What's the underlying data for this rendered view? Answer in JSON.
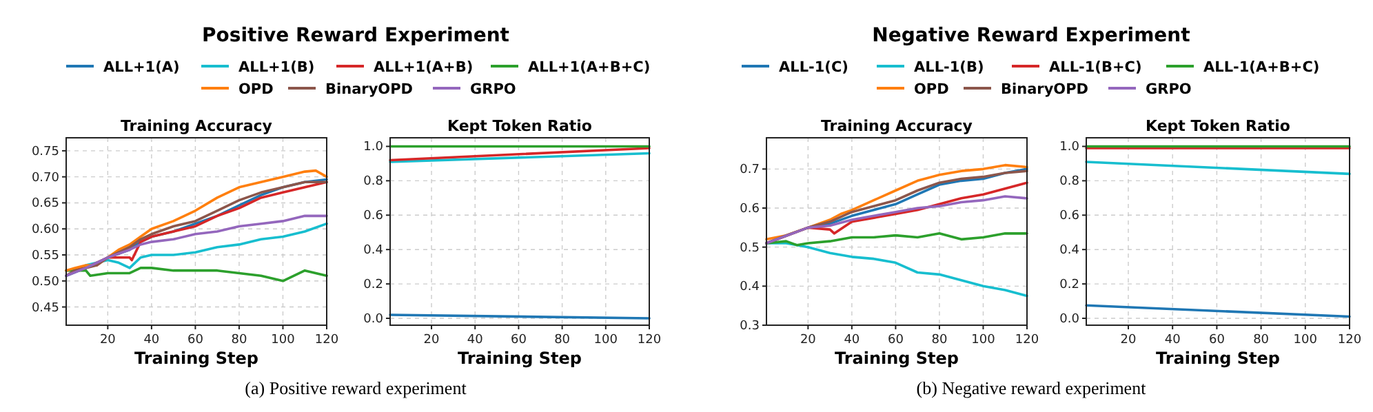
{
  "chart_data": [
    {
      "type": "line",
      "title": "Positive Reward Experiment",
      "subtitle": "Training Accuracy",
      "xlabel": "Training Step",
      "legend": "top",
      "grid": true,
      "xlim": [
        1,
        120
      ],
      "ylim": [
        0.415,
        0.775
      ],
      "xticks": [
        20,
        40,
        60,
        80,
        100,
        120
      ],
      "yticks": [
        {
          "value": 0.45,
          "label": "0.45"
        },
        {
          "value": 0.5,
          "label": "0.50"
        },
        {
          "value": 0.55,
          "label": "0.55"
        },
        {
          "value": 0.6,
          "label": "0.60"
        },
        {
          "value": 0.65,
          "label": "0.65"
        },
        {
          "value": 0.7,
          "label": "0.70"
        },
        {
          "value": 0.75,
          "label": "0.75"
        }
      ],
      "annotations": [
        "(a) Positive reward experiment"
      ],
      "series": [
        {
          "name": "ALL+1(A)",
          "color": "#1f77b4",
          "x": [
            1,
            10,
            20,
            30,
            35,
            40,
            50,
            60,
            70,
            80,
            90,
            100,
            110,
            120
          ],
          "values": [
            0.51,
            0.525,
            0.545,
            0.56,
            0.575,
            0.585,
            0.595,
            0.61,
            0.625,
            0.645,
            0.665,
            0.68,
            0.69,
            0.695
          ]
        },
        {
          "name": "ALL+1(B)",
          "color": "#17becf",
          "x": [
            1,
            10,
            15,
            20,
            25,
            30,
            35,
            40,
            50,
            60,
            70,
            80,
            90,
            100,
            110,
            120
          ],
          "values": [
            0.51,
            0.53,
            0.535,
            0.54,
            0.535,
            0.525,
            0.545,
            0.55,
            0.55,
            0.555,
            0.565,
            0.57,
            0.58,
            0.585,
            0.595,
            0.61
          ]
        },
        {
          "name": "ALL+1(A+B)",
          "color": "#d62728",
          "x": [
            1,
            10,
            20,
            30,
            31,
            35,
            40,
            50,
            60,
            70,
            80,
            90,
            100,
            110,
            120
          ],
          "values": [
            0.52,
            0.525,
            0.545,
            0.545,
            0.54,
            0.575,
            0.585,
            0.595,
            0.605,
            0.625,
            0.64,
            0.66,
            0.67,
            0.68,
            0.69
          ]
        },
        {
          "name": "ALL+1(A+B+C)",
          "color": "#2ca02c",
          "x": [
            1,
            5,
            10,
            12,
            20,
            30,
            35,
            40,
            50,
            60,
            70,
            80,
            90,
            100,
            110,
            120
          ],
          "values": [
            0.52,
            0.52,
            0.52,
            0.51,
            0.515,
            0.515,
            0.525,
            0.525,
            0.52,
            0.52,
            0.52,
            0.515,
            0.51,
            0.5,
            0.52,
            0.51
          ]
        },
        {
          "name": "OPD",
          "color": "#ff7f0e",
          "x": [
            1,
            5,
            10,
            15,
            20,
            25,
            30,
            35,
            40,
            50,
            60,
            70,
            80,
            90,
            100,
            110,
            115,
            120
          ],
          "values": [
            0.52,
            0.525,
            0.53,
            0.53,
            0.545,
            0.56,
            0.57,
            0.585,
            0.6,
            0.615,
            0.635,
            0.66,
            0.68,
            0.69,
            0.7,
            0.71,
            0.712,
            0.7
          ]
        },
        {
          "name": "BinaryOPD",
          "color": "#8c564b",
          "x": [
            1,
            5,
            10,
            15,
            20,
            25,
            30,
            35,
            40,
            50,
            60,
            70,
            80,
            90,
            100,
            110,
            120
          ],
          "values": [
            0.51,
            0.52,
            0.525,
            0.53,
            0.545,
            0.555,
            0.565,
            0.58,
            0.59,
            0.605,
            0.615,
            0.635,
            0.655,
            0.67,
            0.68,
            0.69,
            0.69
          ]
        },
        {
          "name": "GRPO",
          "color": "#9467bd",
          "x": [
            1,
            10,
            20,
            30,
            35,
            40,
            50,
            60,
            70,
            80,
            90,
            100,
            110,
            120
          ],
          "values": [
            0.51,
            0.525,
            0.545,
            0.56,
            0.57,
            0.575,
            0.58,
            0.59,
            0.595,
            0.605,
            0.61,
            0.615,
            0.625,
            0.625
          ]
        }
      ]
    },
    {
      "type": "line",
      "title": "Kept Token Ratio",
      "xlabel": "Training Step",
      "grid": true,
      "xlim": [
        1,
        120
      ],
      "ylim": [
        -0.04,
        1.05
      ],
      "xticks": [
        20,
        40,
        60,
        80,
        100,
        120
      ],
      "yticks": [
        {
          "value": 0,
          "label": "0.0"
        },
        {
          "value": 0.2,
          "label": "0.2"
        },
        {
          "value": 0.4,
          "label": "0.4"
        },
        {
          "value": 0.6,
          "label": "0.6"
        },
        {
          "value": 0.8,
          "label": "0.8"
        },
        {
          "value": 1,
          "label": "1.0"
        }
      ],
      "series": [
        {
          "color": "#1f77b4",
          "x": [
            1,
            120
          ],
          "values": [
            0.02,
            0.0
          ]
        },
        {
          "color": "#17becf",
          "x": [
            1,
            120
          ],
          "values": [
            0.91,
            0.96
          ]
        },
        {
          "color": "#d62728",
          "x": [
            1,
            120
          ],
          "values": [
            0.92,
            0.99
          ]
        },
        {
          "color": "#2ca02c",
          "x": [
            1,
            120
          ],
          "values": [
            1.0,
            1.0
          ]
        }
      ]
    },
    {
      "type": "line",
      "title": "Negative Reward Experiment",
      "subtitle": "Training Accuracy",
      "xlabel": "Training Step",
      "legend": "top",
      "grid": true,
      "xlim": [
        1,
        120
      ],
      "ylim": [
        0.3,
        0.78
      ],
      "xticks": [
        20,
        40,
        60,
        80,
        100,
        120
      ],
      "yticks": [
        {
          "value": 0.3,
          "label": "0.3"
        },
        {
          "value": 0.4,
          "label": "0.4"
        },
        {
          "value": 0.5,
          "label": "0.5"
        },
        {
          "value": 0.6,
          "label": "0.6"
        },
        {
          "value": 0.7,
          "label": "0.7"
        }
      ],
      "annotations": [
        "(b) Negative reward experiment"
      ],
      "series": [
        {
          "name": "ALL-1(C)",
          "color": "#1f77b4",
          "x": [
            1,
            20,
            30,
            40,
            50,
            60,
            70,
            80,
            90,
            100,
            110,
            120
          ],
          "values": [
            0.51,
            0.55,
            0.56,
            0.58,
            0.595,
            0.61,
            0.635,
            0.66,
            0.67,
            0.675,
            0.69,
            0.7
          ]
        },
        {
          "name": "ALL-1(B)",
          "color": "#17becf",
          "x": [
            1,
            10,
            15,
            20,
            30,
            35,
            40,
            50,
            60,
            70,
            80,
            90,
            100,
            110,
            120
          ],
          "values": [
            0.51,
            0.51,
            0.505,
            0.5,
            0.485,
            0.48,
            0.475,
            0.47,
            0.46,
            0.435,
            0.43,
            0.415,
            0.4,
            0.39,
            0.375
          ]
        },
        {
          "name": "ALL-1(B+C)",
          "color": "#d62728",
          "x": [
            1,
            20,
            30,
            32,
            40,
            50,
            60,
            70,
            80,
            90,
            100,
            110,
            120
          ],
          "values": [
            0.51,
            0.55,
            0.545,
            0.535,
            0.565,
            0.575,
            0.585,
            0.595,
            0.61,
            0.625,
            0.635,
            0.65,
            0.665
          ]
        },
        {
          "name": "ALL-1(A+B+C)",
          "color": "#2ca02c",
          "x": [
            1,
            10,
            15,
            20,
            30,
            40,
            50,
            60,
            70,
            80,
            90,
            100,
            110,
            120
          ],
          "values": [
            0.51,
            0.515,
            0.505,
            0.51,
            0.515,
            0.525,
            0.525,
            0.53,
            0.525,
            0.535,
            0.52,
            0.525,
            0.535,
            0.535
          ]
        },
        {
          "name": "OPD",
          "color": "#ff7f0e",
          "x": [
            1,
            10,
            20,
            30,
            35,
            40,
            50,
            60,
            70,
            80,
            90,
            100,
            110,
            120
          ],
          "values": [
            0.52,
            0.53,
            0.55,
            0.57,
            0.585,
            0.595,
            0.62,
            0.645,
            0.67,
            0.685,
            0.695,
            0.7,
            0.71,
            0.705
          ]
        },
        {
          "name": "BinaryOPD",
          "color": "#8c564b",
          "x": [
            1,
            10,
            20,
            30,
            40,
            50,
            60,
            70,
            80,
            90,
            100,
            110,
            120
          ],
          "values": [
            0.51,
            0.53,
            0.55,
            0.565,
            0.59,
            0.605,
            0.62,
            0.645,
            0.665,
            0.675,
            0.68,
            0.69,
            0.695
          ]
        },
        {
          "name": "GRPO",
          "color": "#9467bd",
          "x": [
            1,
            20,
            30,
            40,
            50,
            60,
            70,
            80,
            90,
            100,
            110,
            120
          ],
          "values": [
            0.51,
            0.55,
            0.555,
            0.57,
            0.58,
            0.59,
            0.6,
            0.605,
            0.615,
            0.62,
            0.63,
            0.625
          ]
        }
      ]
    },
    {
      "type": "line",
      "title": "Kept Token Ratio",
      "xlabel": "Training Step",
      "grid": true,
      "xlim": [
        1,
        120
      ],
      "ylim": [
        -0.04,
        1.05
      ],
      "xticks": [
        20,
        40,
        60,
        80,
        100,
        120
      ],
      "yticks": [
        {
          "value": 0,
          "label": "0.0"
        },
        {
          "value": 0.2,
          "label": "0.2"
        },
        {
          "value": 0.4,
          "label": "0.4"
        },
        {
          "value": 0.6,
          "label": "0.6"
        },
        {
          "value": 0.8,
          "label": "0.8"
        },
        {
          "value": 1,
          "label": "1.0"
        }
      ],
      "series": [
        {
          "color": "#1f77b4",
          "x": [
            1,
            120
          ],
          "values": [
            0.075,
            0.01
          ]
        },
        {
          "color": "#17becf",
          "x": [
            1,
            120
          ],
          "values": [
            0.91,
            0.84
          ]
        },
        {
          "color": "#d62728",
          "x": [
            1,
            120
          ],
          "values": [
            0.99,
            0.99
          ]
        },
        {
          "color": "#2ca02c",
          "x": [
            1,
            120
          ],
          "values": [
            1.0,
            1.0
          ]
        }
      ]
    }
  ]
}
